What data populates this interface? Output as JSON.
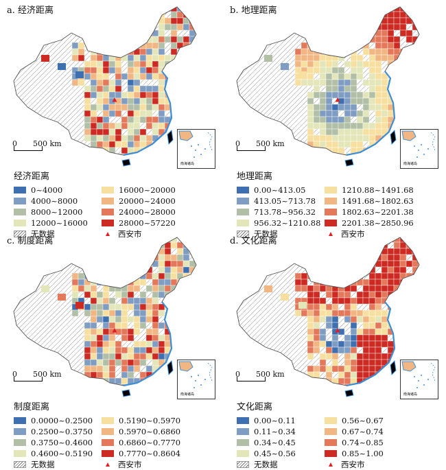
{
  "colors": {
    "hatch": "#777777",
    "xian": "#e02020",
    "coastline": "#3c8ed6"
  },
  "panels": [
    {
      "id": "economic",
      "title": "a. 经济距离",
      "legend_title": "经济距离",
      "scale": {
        "zero": "0",
        "distance": "500 km"
      },
      "inset_label": "南海诸岛",
      "classes": [
        {
          "label": "0~4000",
          "color": "#3e6fb0"
        },
        {
          "label": "4000~8000",
          "color": "#7f9cc2"
        },
        {
          "label": "8000~12000",
          "color": "#b1bfa6"
        },
        {
          "label": "12000~16000",
          "color": "#e3e6b8"
        },
        {
          "label": "16000~20000",
          "color": "#f7dfa0"
        },
        {
          "label": "20000~24000",
          "color": "#f2b683"
        },
        {
          "label": "24000~28000",
          "color": "#e4785a"
        },
        {
          "label": "28000~57220",
          "color": "#cc2a22"
        }
      ],
      "nodata": "无数据",
      "xian": "西安市"
    },
    {
      "id": "geographic",
      "title": "b. 地理距离",
      "legend_title": "地理距离",
      "scale": {
        "zero": "0",
        "distance": "500 km"
      },
      "inset_label": "南海诸岛",
      "classes": [
        {
          "label": "0.00~413.05",
          "color": "#3e6fb0"
        },
        {
          "label": "413.05~713.78",
          "color": "#7f9cc2"
        },
        {
          "label": "713.78~956.32",
          "color": "#b1bfa6"
        },
        {
          "label": "956.32~1210.88",
          "color": "#e3e6b8"
        },
        {
          "label": "1210.88~1491.68",
          "color": "#f7dfa0"
        },
        {
          "label": "1491.68~1802.63",
          "color": "#f2b683"
        },
        {
          "label": "1802.63~2201.38",
          "color": "#e4785a"
        },
        {
          "label": "2201.38~2850.96",
          "color": "#cc2a22"
        }
      ],
      "nodata": "无数据",
      "xian": "西安市"
    },
    {
      "id": "institutional",
      "title": "c. 制度距离",
      "legend_title": "制度距离",
      "scale": {
        "zero": "0",
        "distance": "500 km"
      },
      "inset_label": "南海诸岛",
      "classes": [
        {
          "label": "0.0000~0.2500",
          "color": "#3e6fb0"
        },
        {
          "label": "0.2500~0.3750",
          "color": "#7f9cc2"
        },
        {
          "label": "0.3750~0.4600",
          "color": "#b1bfa6"
        },
        {
          "label": "0.4600~0.5190",
          "color": "#e3e6b8"
        },
        {
          "label": "0.5190~0.5970",
          "color": "#f7dfa0"
        },
        {
          "label": "0.5970~0.6860",
          "color": "#f2b683"
        },
        {
          "label": "0.6860~0.7770",
          "color": "#e4785a"
        },
        {
          "label": "0.7770~0.8604",
          "color": "#cc2a22"
        }
      ],
      "nodata": "无数据",
      "xian": "西安市"
    },
    {
      "id": "cultural",
      "title": "d. 文化距离",
      "legend_title": "文化距离",
      "scale": {
        "zero": "0",
        "distance": "500 km"
      },
      "inset_label": "南海诸岛",
      "classes": [
        {
          "label": "0.00~0.11",
          "color": "#3e6fb0"
        },
        {
          "label": "0.11~0.34",
          "color": "#7f9cc2"
        },
        {
          "label": "0.34~0.45",
          "color": "#b1bfa6"
        },
        {
          "label": "0.45~0.56",
          "color": "#e3e6b8"
        },
        {
          "label": "0.56~0.67",
          "color": "#f7dfa0"
        },
        {
          "label": "0.67~0.74",
          "color": "#f2b683"
        },
        {
          "label": "0.74~0.85",
          "color": "#e4785a"
        },
        {
          "label": "0.85~1.00",
          "color": "#cc2a22"
        }
      ],
      "nodata": "无数据",
      "xian": "西安市"
    }
  ]
}
